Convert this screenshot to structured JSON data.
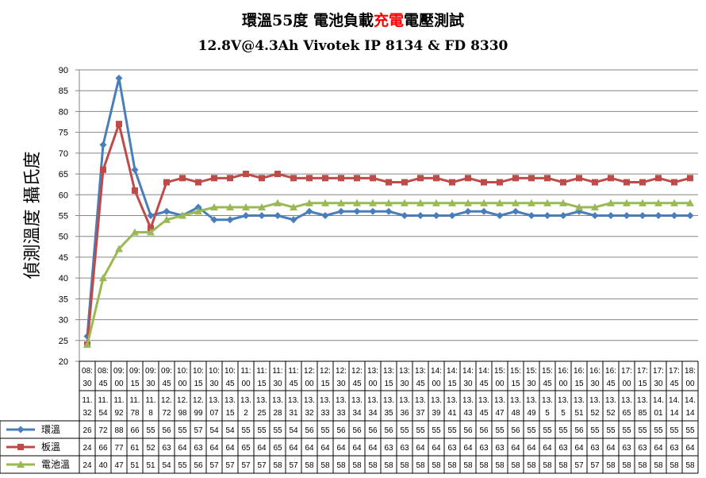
{
  "chart_data": {
    "type": "line",
    "title_parts": [
      {
        "text": "環溫55度 電池負載",
        "color": "#000000"
      },
      {
        "text": "充電",
        "color": "#ff0000"
      },
      {
        "text": "電壓測試",
        "color": "#000000"
      }
    ],
    "subtitle": "12.8V@4.3Ah Vivotek IP 8134 & FD 8330",
    "ylabel": "偵測溫度 攝氏度",
    "ylim": [
      20,
      90
    ],
    "ytick_step": 5,
    "grid": true,
    "legend": "table-left",
    "x": [
      "08:30",
      "08:45",
      "09:00",
      "09:15",
      "09:30",
      "09:45",
      "10:00",
      "10:15",
      "10:30",
      "10:45",
      "11:00",
      "11:15",
      "11:30",
      "11:45",
      "12:00",
      "12:15",
      "12:30",
      "12:45",
      "13:00",
      "13:15",
      "13:30",
      "13:45",
      "14:00",
      "14:15",
      "14:30",
      "14:45",
      "15:00",
      "15:15",
      "15:30",
      "15:45",
      "16:00",
      "16:15",
      "16:30",
      "16:45",
      "17:00",
      "17:15",
      "17:30",
      "17:45",
      "18:00"
    ],
    "x_voltage": [
      "11.32",
      "11.54",
      "11.92",
      "11.78",
      "11.8",
      "12.72",
      "12.98",
      "12.99",
      "13.07",
      "13.15",
      "13.2",
      "13.25",
      "13.28",
      "13.31",
      "13.32",
      "13.33",
      "13.33",
      "13.34",
      "13.34",
      "13.35",
      "13.36",
      "13.37",
      "13.39",
      "13.41",
      "13.43",
      "13.45",
      "13.47",
      "13.48",
      "13.49",
      "13.5",
      "13.5",
      "13.51",
      "13.52",
      "13.52",
      "13.65",
      "13.85",
      "14.01",
      "14.14",
      "14.14"
    ],
    "series": [
      {
        "name": "環溫",
        "color": "#4a7ebb",
        "marker": "diamond",
        "values": [
          26,
          72,
          88,
          66,
          55,
          56,
          55,
          57,
          54,
          54,
          55,
          55,
          55,
          54,
          56,
          55,
          56,
          56,
          56,
          56,
          55,
          55,
          55,
          55,
          56,
          56,
          55,
          56,
          55,
          55,
          55,
          56,
          55,
          55,
          55,
          55,
          55,
          55,
          55
        ]
      },
      {
        "name": "板溫",
        "color": "#be4b48",
        "marker": "square",
        "values": [
          24,
          66,
          77,
          61,
          52,
          63,
          64,
          63,
          64,
          64,
          65,
          64,
          65,
          64,
          64,
          64,
          64,
          64,
          64,
          63,
          63,
          64,
          64,
          63,
          64,
          63,
          63,
          64,
          64,
          64,
          63,
          64,
          63,
          64,
          63,
          63,
          64,
          63,
          64
        ]
      },
      {
        "name": "電池溫",
        "color": "#98b954",
        "marker": "triangle",
        "values": [
          24,
          40,
          47,
          51,
          51,
          54,
          55,
          56,
          57,
          57,
          57,
          57,
          58,
          57,
          58,
          58,
          58,
          58,
          58,
          58,
          58,
          58,
          58,
          58,
          58,
          58,
          58,
          58,
          58,
          58,
          58,
          57,
          57,
          58,
          58,
          58,
          58,
          58,
          58
        ]
      }
    ]
  }
}
